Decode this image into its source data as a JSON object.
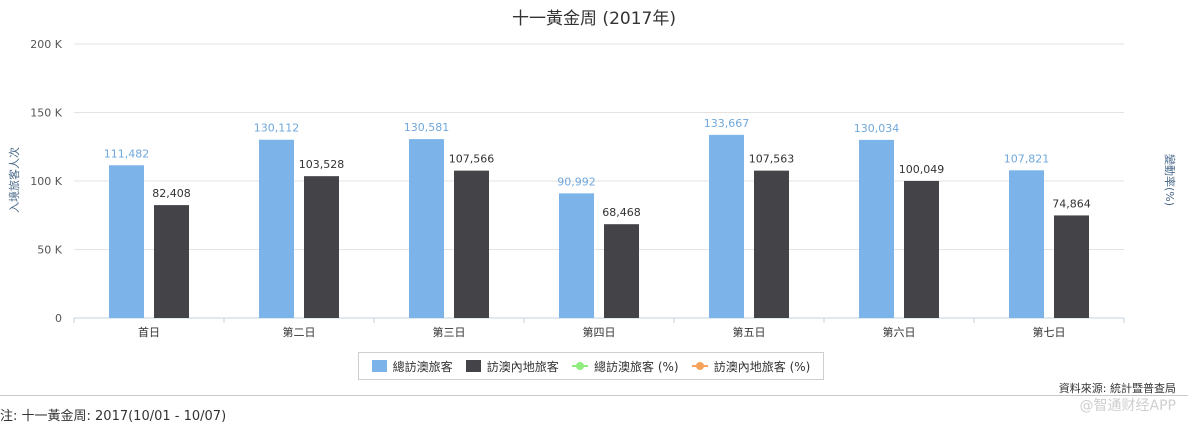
{
  "chart_data": {
    "type": "bar",
    "title": "十一黃金周 (2017年)",
    "categories": [
      "首日",
      "第二日",
      "第三日",
      "第四日",
      "第五日",
      "第六日",
      "第七日"
    ],
    "series": [
      {
        "name": "總訪澳旅客",
        "values": [
          111482,
          130112,
          130581,
          90992,
          133667,
          130034,
          107821
        ],
        "color": "#7cb4ea",
        "labels": [
          "111,482",
          "130,112",
          "130,581",
          "90,992",
          "133,667",
          "130,034",
          "107,821"
        ]
      },
      {
        "name": "訪澳內地旅客",
        "values": [
          82408,
          103528,
          107566,
          68468,
          107563,
          100049,
          74864
        ],
        "color": "#434348",
        "labels": [
          "82,408",
          "103,528",
          "107,566",
          "68,468",
          "107,563",
          "100,049",
          "74,864"
        ]
      }
    ],
    "line_series_legend": [
      {
        "name": "總訪澳旅客 (%)",
        "color": "#90ed7d"
      },
      {
        "name": "訪澳內地旅客 (%)",
        "color": "#f7a35c"
      }
    ],
    "ylim": [
      0,
      200000
    ],
    "yticks": [
      0,
      50000,
      100000,
      150000,
      200000
    ],
    "ytick_labels": [
      "0",
      "50 K",
      "100 K",
      "150 K",
      "200 K"
    ],
    "ylabel": "入境旅客人次",
    "y2label": "變動率(%)",
    "xlabel": "",
    "grid": true,
    "legend_position": "bottom-center"
  },
  "source_text": "資料來源: 統計暨普查局",
  "note_text": "注: 十一黃金周: 2017(10/01 - 10/07)",
  "watermark_text": "@智通财经APP"
}
